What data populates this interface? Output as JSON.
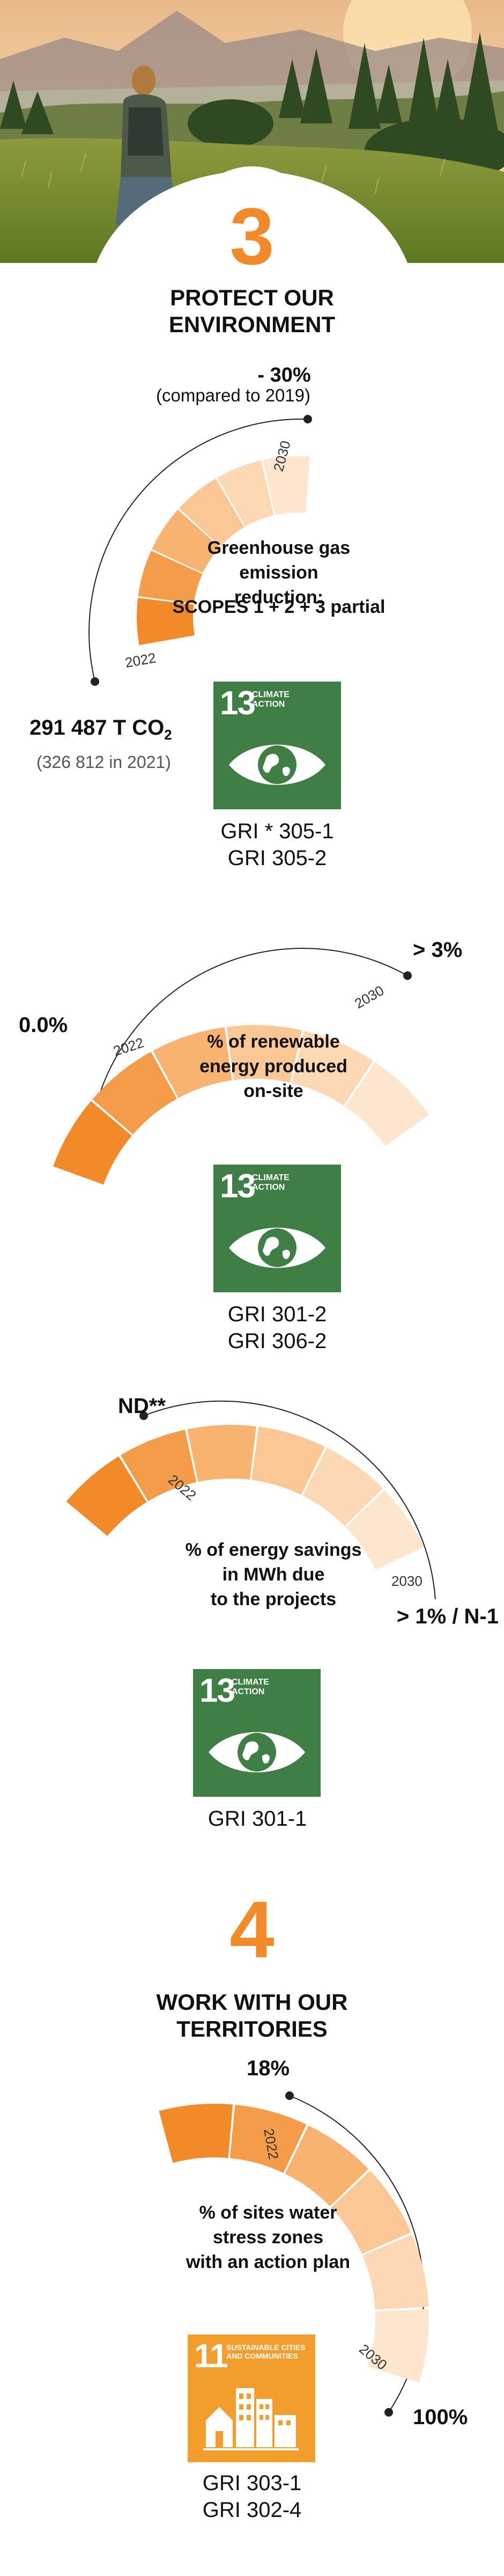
{
  "section3": {
    "number": "3",
    "title": "PROTECT OUR\nENVIRONMENT",
    "kpi1": {
      "target_value": "- 30%",
      "target_note": "(compared to 2019)",
      "description": "Greenhouse gas\nemission reduction:",
      "scopes": "SCOPES 1 + 2 + 3 partial",
      "value_main": "291 487 T CO",
      "value_sub": "2",
      "value_note": "(326 812 in 2021)",
      "year_start": "2022",
      "year_end": "2030",
      "sdg": {
        "number": "13",
        "label": "CLIMATE\nACTION",
        "icon": "eye-globe-icon"
      },
      "gri": "GRI * 305-1\nGRI 305-2"
    },
    "kpi2": {
      "start_value": "0.0%",
      "target_value": "> 3%",
      "description": "% of renewable\nenergy produced\non-site",
      "year_start": "2022",
      "year_end": "2030",
      "sdg": {
        "number": "13",
        "label": "CLIMATE\nACTION",
        "icon": "eye-globe-icon"
      },
      "gri": "GRI 301-2\nGRI 306-2"
    },
    "kpi3": {
      "start_value": "ND**",
      "target_value": "> 1% / N-1",
      "description": "% of energy savings\nin MWh due\nto the projects",
      "year_start": "2022",
      "year_end": "2030",
      "sdg": {
        "number": "13",
        "label": "CLIMATE\nACTION",
        "icon": "eye-globe-icon"
      },
      "gri": "GRI 301-1"
    }
  },
  "section4": {
    "number": "4",
    "title": "WORK WITH OUR\nTERRITORIES",
    "kpi1": {
      "start_value": "18%",
      "target_value": "100%",
      "description": "% of sites water\nstress zones\nwith an action plan",
      "year_start": "2022",
      "year_end": "2030",
      "sdg": {
        "number": "11",
        "label": "SUSTAINABLE CITIES\nAND COMMUNITIES",
        "icon": "city-buildings-icon"
      },
      "gri": "GRI 303-1\nGRI 302-4"
    }
  },
  "colors": {
    "accent": "#f28a2a",
    "sdg13": "#3f7e44",
    "sdg11": "#f39d2c"
  }
}
